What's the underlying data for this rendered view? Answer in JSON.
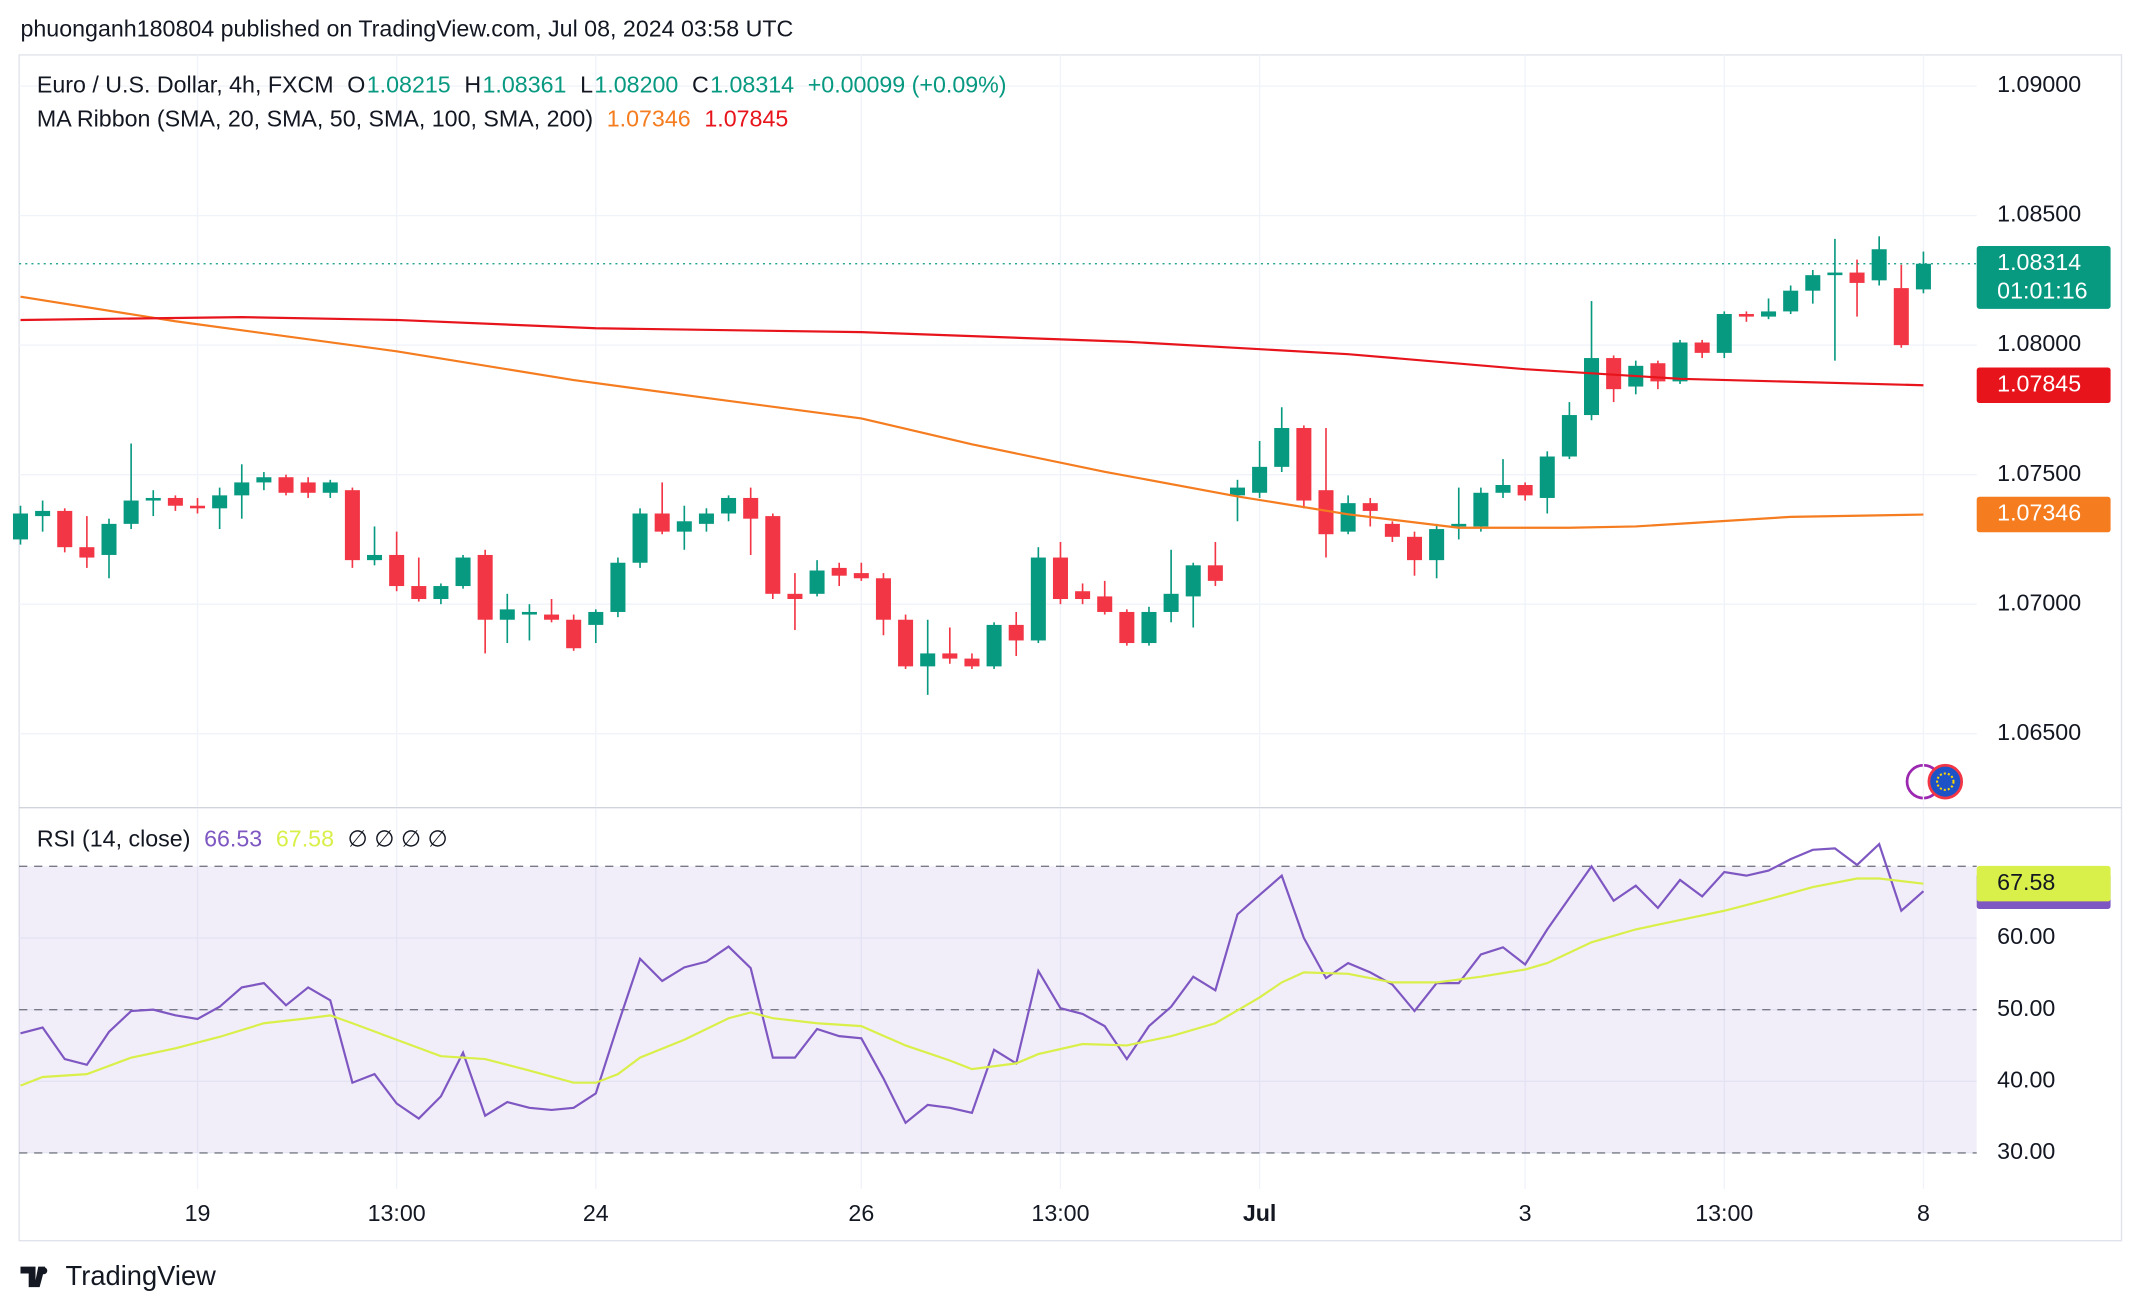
{
  "header": "phuonganh180804 published on TradingView.com, Jul 08, 2024 03:58 UTC",
  "footer": "TradingView",
  "chart_data": [
    {
      "type": "candlestick",
      "title": "Euro / U.S. Dollar, 4h, FXCM",
      "legend": [
        {
          "key": "O",
          "value": "1.08215"
        },
        {
          "key": "H",
          "value": "1.08361"
        },
        {
          "key": "L",
          "value": "1.08200"
        },
        {
          "key": "C",
          "value": "1.08314"
        }
      ],
      "change": "+0.00099 (+0.09%)",
      "indicator": "MA Ribbon (SMA, 20, SMA, 50, SMA, 100, SMA, 200)",
      "countdown": "01:01:16",
      "up_color": "#089981",
      "down_color": "#f23645",
      "categories": [
        null,
        null,
        null,
        null,
        null,
        null,
        null,
        null,
        "19",
        null,
        null,
        null,
        null,
        null,
        null,
        null,
        null,
        "13:00",
        null,
        null,
        null,
        null,
        null,
        null,
        null,
        null,
        "24",
        null,
        null,
        null,
        null,
        null,
        null,
        null,
        null,
        null,
        null,
        null,
        "26",
        null,
        null,
        null,
        null,
        null,
        null,
        null,
        null,
        "13:00",
        null,
        null,
        null,
        null,
        null,
        null,
        null,
        null,
        "Jul",
        null,
        null,
        null,
        null,
        null,
        null,
        null,
        null,
        null,
        null,
        null,
        "3",
        null,
        null,
        null,
        null,
        null,
        null,
        null,
        null,
        "13:00",
        null,
        null,
        null,
        null,
        null,
        null,
        null,
        null,
        "8"
      ],
      "open": [
        1.0725,
        1.0734,
        1.0736,
        1.0722,
        1.0719,
        1.0731,
        1.074,
        1.0741,
        1.0738,
        1.0737,
        1.0742,
        1.0747,
        1.0749,
        1.0747,
        1.0743,
        1.0744,
        1.0717,
        1.0719,
        1.0707,
        1.0702,
        1.0707,
        1.0719,
        1.0694,
        1.0696,
        1.0696,
        1.0694,
        1.0692,
        1.0697,
        1.0716,
        1.0735,
        1.0728,
        1.0731,
        1.0735,
        1.0741,
        1.0734,
        1.0704,
        1.0704,
        1.0714,
        1.0712,
        1.071,
        1.0694,
        1.0676,
        1.0681,
        1.0679,
        1.0676,
        1.0692,
        1.0686,
        1.0718,
        1.0705,
        1.0703,
        1.0697,
        1.0685,
        1.0697,
        1.0703,
        1.0715,
        1.0742,
        1.0743,
        1.0753,
        1.0768,
        1.0744,
        1.0728,
        1.0739,
        1.0731,
        1.0726,
        1.0717,
        1.073,
        1.073,
        1.0743,
        1.0746,
        1.0741,
        1.0757,
        1.0773,
        1.0795,
        1.0784,
        1.0793,
        1.0786,
        1.0801,
        1.0797,
        1.0812,
        1.0811,
        1.0813,
        1.0821,
        1.0827,
        1.0828,
        1.0825,
        1.0822,
        1.08215
      ],
      "high": [
        1.0738,
        1.074,
        1.0737,
        1.0734,
        1.0733,
        1.0762,
        1.0744,
        1.0742,
        1.0741,
        1.0745,
        1.0754,
        1.0751,
        1.075,
        1.0749,
        1.0748,
        1.0745,
        1.073,
        1.0728,
        1.0718,
        1.0708,
        1.0719,
        1.0721,
        1.0704,
        1.07,
        1.0702,
        1.0696,
        1.0698,
        1.0718,
        1.0737,
        1.0747,
        1.0738,
        1.0737,
        1.0742,
        1.0745,
        1.0735,
        1.0712,
        1.0717,
        1.0716,
        1.0716,
        1.0712,
        1.0696,
        1.0694,
        1.0691,
        1.0681,
        1.0693,
        1.0697,
        1.0722,
        1.0724,
        1.0708,
        1.0709,
        1.0698,
        1.0699,
        1.0721,
        1.0716,
        1.0724,
        1.0748,
        1.0763,
        1.0776,
        1.0769,
        1.0768,
        1.0742,
        1.0741,
        1.0732,
        1.0728,
        1.0731,
        1.0745,
        1.0745,
        1.0756,
        1.0747,
        1.0759,
        1.0778,
        1.0817,
        1.0796,
        1.0794,
        1.0794,
        1.0802,
        1.0802,
        1.0813,
        1.0813,
        1.0818,
        1.0823,
        1.0829,
        1.0841,
        1.0833,
        1.0842,
        1.0831,
        1.08361
      ],
      "low": [
        1.0723,
        1.0728,
        1.072,
        1.0714,
        1.071,
        1.0729,
        1.0734,
        1.0736,
        1.0735,
        1.0729,
        1.0733,
        1.0744,
        1.0742,
        1.0741,
        1.0741,
        1.0714,
        1.0715,
        1.0705,
        1.0701,
        1.07,
        1.0706,
        1.0681,
        1.0685,
        1.0686,
        1.0693,
        1.0682,
        1.0685,
        1.0695,
        1.0714,
        1.0727,
        1.0721,
        1.0728,
        1.0732,
        1.0719,
        1.0702,
        1.069,
        1.0703,
        1.0707,
        1.0709,
        1.0688,
        1.0675,
        1.0665,
        1.0677,
        1.0675,
        1.0675,
        1.068,
        1.0685,
        1.07,
        1.07,
        1.0696,
        1.0684,
        1.0684,
        1.0693,
        1.0691,
        1.0707,
        1.0732,
        1.0741,
        1.0751,
        1.0737,
        1.0718,
        1.0727,
        1.073,
        1.0724,
        1.0711,
        1.071,
        1.0725,
        1.0728,
        1.0741,
        1.074,
        1.0735,
        1.0756,
        1.0771,
        1.0778,
        1.0781,
        1.0783,
        1.0785,
        1.0795,
        1.0795,
        1.0809,
        1.081,
        1.0812,
        1.0816,
        1.0794,
        1.0811,
        1.0823,
        1.0799,
        1.082
      ],
      "close": [
        1.0735,
        1.0736,
        1.0722,
        1.0718,
        1.0731,
        1.074,
        1.0741,
        1.0738,
        1.0737,
        1.0742,
        1.0747,
        1.0749,
        1.0743,
        1.0743,
        1.0747,
        1.0717,
        1.0719,
        1.0707,
        1.0702,
        1.0707,
        1.0718,
        1.0694,
        1.0698,
        1.0697,
        1.0694,
        1.0683,
        1.0697,
        1.0716,
        1.0735,
        1.0728,
        1.0732,
        1.0735,
        1.0741,
        1.0733,
        1.0704,
        1.0702,
        1.0713,
        1.0711,
        1.071,
        1.0694,
        1.0676,
        1.0681,
        1.0679,
        1.0676,
        1.0692,
        1.0686,
        1.0718,
        1.0702,
        1.0702,
        1.0697,
        1.0685,
        1.0697,
        1.0704,
        1.0715,
        1.0709,
        1.0745,
        1.0753,
        1.0768,
        1.074,
        1.0727,
        1.0739,
        1.0736,
        1.0726,
        1.0717,
        1.0729,
        1.0731,
        1.0743,
        1.0746,
        1.0742,
        1.0757,
        1.0773,
        1.0795,
        1.0783,
        1.0792,
        1.0786,
        1.0801,
        1.0797,
        1.0812,
        1.0811,
        1.0813,
        1.0821,
        1.0827,
        1.0828,
        1.0824,
        1.0837,
        1.08,
        1.08314
      ],
      "series": [
        {
          "color": "#f57c1f",
          "x": [
            0,
            7,
            17,
            25,
            31,
            38,
            43,
            49,
            55,
            60,
            65,
            70,
            73,
            80,
            86
          ],
          "values": [
            1.08187,
            1.08092,
            1.07976,
            1.07865,
            1.07796,
            1.07717,
            1.07617,
            1.07511,
            1.07416,
            1.07347,
            1.07295,
            1.07295,
            1.073,
            1.07337,
            1.07346
          ]
        },
        {
          "color": "#e8141c",
          "x": [
            0,
            10,
            17,
            26,
            38,
            50,
            60,
            68,
            75,
            86
          ],
          "values": [
            1.08097,
            1.08108,
            1.08097,
            1.08065,
            1.0805,
            1.08013,
            1.07965,
            1.07907,
            1.0787,
            1.07845
          ]
        }
      ],
      "ylim": [
        1.0622,
        1.0912
      ],
      "yticks": [
        {
          "value": 1.065,
          "label": "1.06500"
        },
        {
          "value": 1.07,
          "label": "1.07000"
        },
        {
          "value": 1.075,
          "label": "1.07500"
        },
        {
          "value": 1.08,
          "label": "1.08000"
        },
        {
          "value": 1.085,
          "label": "1.08500"
        },
        {
          "value": 1.09,
          "label": "1.09000"
        }
      ],
      "grid": true
    },
    {
      "type": "line",
      "title": "RSI (14, close)",
      "extras": "∅ ∅ ∅ ∅",
      "series": [
        {
          "color": "#7e57c2",
          "values": [
            46.7,
            47.5,
            43.1,
            42.3,
            46.9,
            49.8,
            50,
            49.2,
            48.7,
            50.4,
            53.1,
            53.7,
            50.6,
            53.1,
            51.3,
            39.8,
            41,
            36.9,
            34.8,
            37.9,
            44,
            35.2,
            37.1,
            36.3,
            36,
            36.3,
            38.3,
            47.9,
            57.1,
            54,
            55.9,
            56.7,
            58.8,
            55.8,
            43.3,
            43.3,
            47.3,
            46.3,
            46,
            40.4,
            34.2,
            36.7,
            36.3,
            35.6,
            44.4,
            42.5,
            55.4,
            50.2,
            49.4,
            47.7,
            43.1,
            47.7,
            50.4,
            54.6,
            52.7,
            63.3,
            66,
            68.7,
            60,
            54.4,
            56.5,
            55.2,
            53.5,
            49.8,
            53.7,
            53.7,
            57.7,
            58.7,
            56.3,
            61.2,
            65.6,
            70,
            65.2,
            67.3,
            64.2,
            68.1,
            65.8,
            69.2,
            68.7,
            69.4,
            71,
            72.3,
            72.5,
            70.2,
            73.1,
            63.8,
            66.53
          ]
        },
        {
          "color": "#d9ef4a",
          "x": [
            0,
            1,
            3,
            5,
            7,
            9,
            11,
            13,
            14,
            15,
            17,
            19,
            21,
            23,
            25,
            26,
            27,
            28,
            30,
            32,
            33,
            34,
            36,
            38,
            40,
            42,
            43,
            45,
            46,
            48,
            50,
            52,
            54,
            56,
            57,
            58,
            60,
            62,
            64,
            66,
            68,
            69,
            71,
            73,
            75,
            77,
            79,
            81,
            83,
            84,
            86
          ],
          "values": [
            39.4,
            40.6,
            41,
            43.3,
            44.6,
            46.2,
            48.1,
            48.8,
            49.2,
            48.1,
            45.8,
            43.5,
            43.1,
            41.5,
            39.8,
            39.8,
            41,
            43.3,
            45.8,
            48.8,
            49.6,
            48.8,
            48.1,
            47.7,
            45,
            42.9,
            41.7,
            42.5,
            43.8,
            45.2,
            45,
            46.3,
            48.1,
            51.7,
            53.8,
            55.2,
            55,
            53.8,
            53.8,
            54.6,
            55.6,
            56.5,
            59.4,
            61.2,
            62.5,
            63.8,
            65.4,
            67.1,
            68.3,
            68.3,
            67.58
          ]
        }
      ],
      "hlines": [
        70,
        50,
        30
      ],
      "ylim": [
        25,
        78
      ],
      "yticks": [
        {
          "value": 30,
          "label": "30.00"
        },
        {
          "value": 40,
          "label": "40.00"
        },
        {
          "value": 50,
          "label": "50.00"
        },
        {
          "value": 60,
          "label": "60.00"
        }
      ],
      "grid": true
    }
  ]
}
